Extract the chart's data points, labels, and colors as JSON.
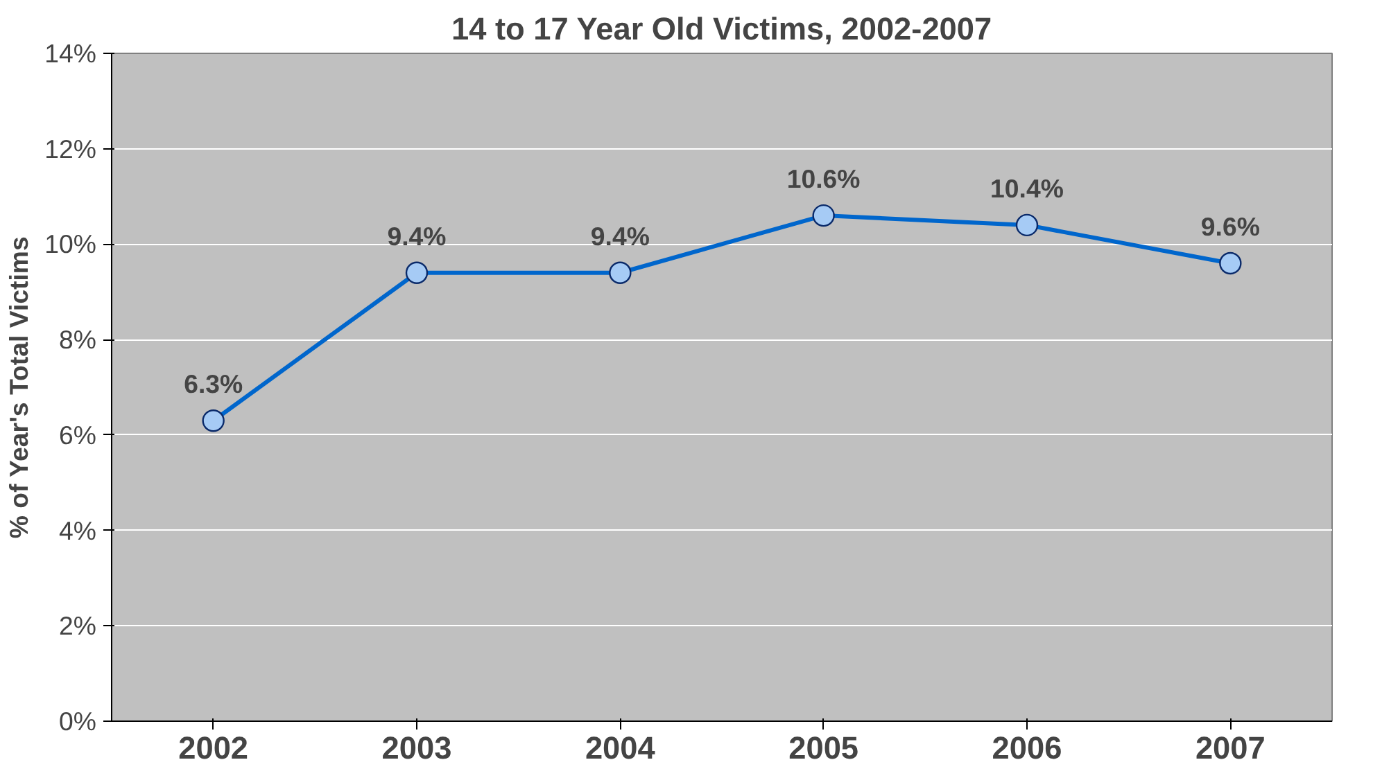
{
  "chart_data": {
    "type": "line",
    "title": "14 to 17 Year Old Victims, 2002-2007",
    "ylabel": "% of Year's Total Victims",
    "categories": [
      "2002",
      "2003",
      "2004",
      "2005",
      "2006",
      "2007"
    ],
    "series": [
      {
        "color": "#0066cc",
        "values": [
          6.3,
          9.4,
          9.4,
          10.6,
          10.4,
          9.6
        ],
        "value_labels": [
          "6.3%",
          "9.4%",
          "9.4%",
          "10.6%",
          "10.4%",
          "9.6%"
        ]
      }
    ],
    "ylim": [
      0,
      14
    ],
    "yticks": [
      {
        "value": 0,
        "label": "0%"
      },
      {
        "value": 2,
        "label": "2%"
      },
      {
        "value": 4,
        "label": "4%"
      },
      {
        "value": 6,
        "label": "6%"
      },
      {
        "value": 8,
        "label": "8%"
      },
      {
        "value": 10,
        "label": "10%"
      },
      {
        "value": 12,
        "label": "12%"
      },
      {
        "value": 14,
        "label": "14%"
      }
    ],
    "grid": "y",
    "marker": "circle",
    "line_style": "solid"
  }
}
